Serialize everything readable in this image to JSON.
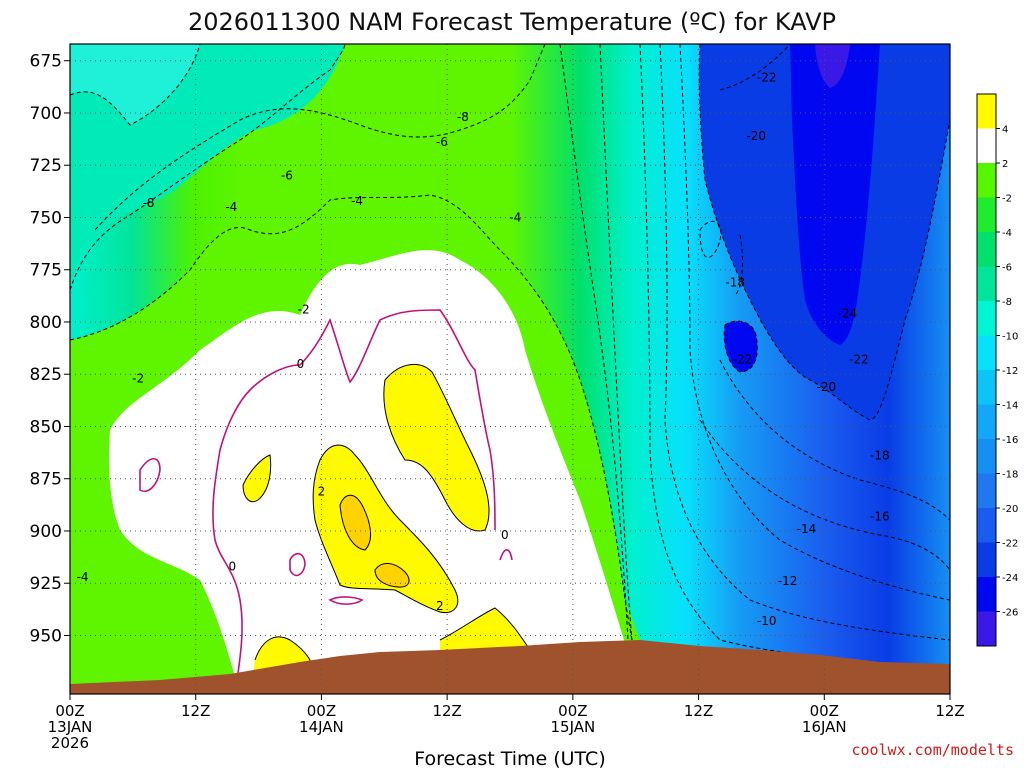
{
  "chart_data": {
    "type": "heatmap",
    "title": "2026011300 NAM Forecast Temperature (ºC) for KAVP",
    "xlabel": "Forecast Time (UTC)",
    "ylabel": "",
    "x_ticks": [
      {
        "hours": 0,
        "lines": [
          "00Z",
          "13JAN",
          "2026"
        ]
      },
      {
        "hours": 12,
        "lines": [
          "12Z"
        ]
      },
      {
        "hours": 24,
        "lines": [
          "00Z",
          "14JAN"
        ]
      },
      {
        "hours": 36,
        "lines": [
          "12Z"
        ]
      },
      {
        "hours": 48,
        "lines": [
          "00Z",
          "15JAN"
        ]
      },
      {
        "hours": 60,
        "lines": [
          "12Z"
        ]
      },
      {
        "hours": 72,
        "lines": [
          "00Z",
          "16JAN"
        ]
      },
      {
        "hours": 84,
        "lines": [
          "12Z"
        ]
      }
    ],
    "xlim_hours": [
      0,
      84
    ],
    "y_ticks": [
      675,
      700,
      725,
      750,
      775,
      800,
      825,
      850,
      875,
      900,
      925,
      950
    ],
    "ylim_hpa": [
      667,
      978
    ],
    "y_inverted": true,
    "grid": true,
    "colorbar": {
      "placement": "right",
      "levels": [
        -28,
        -26,
        -24,
        -22,
        -20,
        -18,
        -16,
        -14,
        -12,
        -10,
        -8,
        -6,
        -4,
        -2,
        2,
        4,
        6
      ],
      "tick_labels": [
        "-26",
        "-24",
        "-22",
        "-20",
        "-18",
        "-16",
        "-14",
        "-12",
        "-10",
        "-8",
        "-6",
        "-4",
        "-2",
        "2",
        "4"
      ],
      "colors": [
        "#3a18e8",
        "#0008f2",
        "#0a3ce6",
        "#1a5cf0",
        "#1f78f0",
        "#168ff4",
        "#12a8f7",
        "#0dc4f9",
        "#07e2fc",
        "#00f5d4",
        "#00e59a",
        "#00e06a",
        "#1fec2f",
        "#56f500",
        "#ffffff",
        "#fffa00",
        "#ffd200"
      ]
    },
    "terrain_color": "#a0522d",
    "zero_contour_color": "#c41274",
    "contour_labels": [
      {
        "text": "-22",
        "hours": 66.5,
        "hpa": 683
      },
      {
        "text": "-20",
        "hours": 65.5,
        "hpa": 711
      },
      {
        "text": "-8",
        "hours": 37.5,
        "hpa": 702
      },
      {
        "text": "-6",
        "hours": 35.5,
        "hpa": 714
      },
      {
        "text": "-6",
        "hours": 20.7,
        "hpa": 730
      },
      {
        "text": "-4",
        "hours": 27.4,
        "hpa": 742
      },
      {
        "text": "-4",
        "hours": 15.4,
        "hpa": 745
      },
      {
        "text": "-8",
        "hours": 7.5,
        "hpa": 743
      },
      {
        "text": "-4",
        "hours": 42.5,
        "hpa": 750
      },
      {
        "text": "-18",
        "hours": 63.5,
        "hpa": 781
      },
      {
        "text": "-24",
        "hours": 74.2,
        "hpa": 796
      },
      {
        "text": "-2",
        "hours": 22.3,
        "hpa": 794
      },
      {
        "text": "0",
        "hours": 22,
        "hpa": 820
      },
      {
        "text": "-22",
        "hours": 64.2,
        "hpa": 818
      },
      {
        "text": "-22",
        "hours": 75.3,
        "hpa": 818
      },
      {
        "text": "-2",
        "hours": 6.5,
        "hpa": 827
      },
      {
        "text": "-20",
        "hours": 72.2,
        "hpa": 831
      },
      {
        "text": "-18",
        "hours": 77.3,
        "hpa": 864
      },
      {
        "text": "2",
        "hours": 24,
        "hpa": 881
      },
      {
        "text": "-16",
        "hours": 77.3,
        "hpa": 893
      },
      {
        "text": "-14",
        "hours": 70.3,
        "hpa": 899
      },
      {
        "text": "0",
        "hours": 41.5,
        "hpa": 902
      },
      {
        "text": "0",
        "hours": 15.5,
        "hpa": 917
      },
      {
        "text": "-4",
        "hours": 1.2,
        "hpa": 922
      },
      {
        "text": "-12",
        "hours": 68.5,
        "hpa": 924
      },
      {
        "text": "2",
        "hours": 35.3,
        "hpa": 936
      },
      {
        "text": "-10",
        "hours": 66.5,
        "hpa": 943
      }
    ],
    "credit": "coolwx.com/modelts"
  }
}
